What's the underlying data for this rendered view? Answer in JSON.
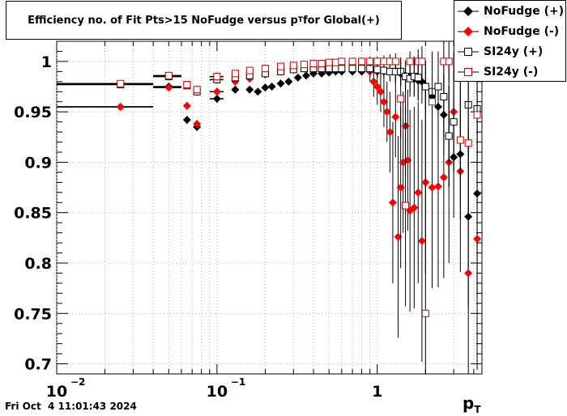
{
  "chart_data": {
    "type": "scatter",
    "title_main": "Efficiency no. of Fit Pts>15 NoFudge versus p",
    "title_sub": "T",
    "title_tail": " for Global(+)",
    "xlabel_main": "p",
    "xlabel_sub": "T",
    "ylabel": "",
    "x_scale": "log",
    "xlim": [
      0.01,
      4.5
    ],
    "ylim": [
      0.69,
      1.02
    ],
    "grid": true,
    "legend_position": "top-right",
    "y_ticks": [
      "0.7",
      "0.75",
      "0.8",
      "0.85",
      "0.9",
      "0.95",
      "1"
    ],
    "x_ticks": [
      {
        "base": "10",
        "exp": "−2",
        "value": 0.01
      },
      {
        "base": "10",
        "exp": "−1",
        "value": 0.1
      },
      {
        "base": "1",
        "exp": "",
        "value": 1
      }
    ],
    "series": [
      {
        "name": "NoFudge (+)",
        "marker": "diamond-filled",
        "color": "#000000",
        "points": [
          {
            "x": 0.025,
            "y": 0.955,
            "xerr": [
              0.01,
              0.04
            ],
            "yerr": 0.002
          },
          {
            "x": 0.05,
            "y": 0.975,
            "xerr": [
              0.04,
              0.06
            ],
            "yerr": 0.003
          },
          {
            "x": 0.065,
            "y": 0.942,
            "yerr": 0.004
          },
          {
            "x": 0.075,
            "y": 0.935,
            "yerr": 0.004
          },
          {
            "x": 0.1,
            "y": 0.963,
            "xerr": [
              0.09,
              0.11
            ],
            "yerr": 0.004
          },
          {
            "x": 0.13,
            "y": 0.972,
            "yerr": 0.003
          },
          {
            "x": 0.16,
            "y": 0.972,
            "yerr": 0.003
          },
          {
            "x": 0.18,
            "y": 0.97,
            "yerr": 0.003
          },
          {
            "x": 0.2,
            "y": 0.974,
            "yerr": 0.003
          },
          {
            "x": 0.22,
            "y": 0.975,
            "yerr": 0.003
          },
          {
            "x": 0.25,
            "y": 0.978,
            "yerr": 0.003
          },
          {
            "x": 0.28,
            "y": 0.98,
            "yerr": 0.003
          },
          {
            "x": 0.32,
            "y": 0.984,
            "yerr": 0.003
          },
          {
            "x": 0.36,
            "y": 0.986,
            "yerr": 0.003
          },
          {
            "x": 0.4,
            "y": 0.988,
            "yerr": 0.003
          },
          {
            "x": 0.45,
            "y": 0.988,
            "yerr": 0.003
          },
          {
            "x": 0.5,
            "y": 0.989,
            "yerr": 0.003
          },
          {
            "x": 0.55,
            "y": 0.99,
            "yerr": 0.003
          },
          {
            "x": 0.6,
            "y": 0.99,
            "yerr": 0.004
          },
          {
            "x": 0.7,
            "y": 0.99,
            "yerr": 0.004
          },
          {
            "x": 0.8,
            "y": 0.99,
            "yerr": 0.004
          },
          {
            "x": 0.9,
            "y": 0.99,
            "yerr": 0.005
          },
          {
            "x": 1.0,
            "y": 0.99,
            "yerr": 0.006
          },
          {
            "x": 1.1,
            "y": 0.99,
            "yerr": 0.007
          },
          {
            "x": 1.2,
            "y": 0.99,
            "yerr": 0.008
          },
          {
            "x": 1.3,
            "y": 0.99,
            "yerr": 0.01
          },
          {
            "x": 1.4,
            "y": 0.988,
            "yerr": 0.012
          },
          {
            "x": 1.5,
            "y": 0.986,
            "yerr": 0.014
          },
          {
            "x": 1.6,
            "y": 0.985,
            "yerr": 0.016
          },
          {
            "x": 1.7,
            "y": 0.983,
            "yerr": 0.018
          },
          {
            "x": 1.8,
            "y": 0.981,
            "yerr": 0.02
          },
          {
            "x": 1.9,
            "y": 0.98,
            "yerr": 0.022
          },
          {
            "x": 2.0,
            "y": 0.976,
            "yerr": 0.025
          },
          {
            "x": 2.2,
            "y": 0.965,
            "yerr": 0.03
          },
          {
            "x": 2.4,
            "y": 0.955,
            "yerr": 0.035
          },
          {
            "x": 2.6,
            "y": 0.947,
            "yerr": 0.04
          },
          {
            "x": 2.8,
            "y": 0.926,
            "yerr": 0.05
          },
          {
            "x": 3.0,
            "y": 0.905,
            "yerr": 0.06
          },
          {
            "x": 3.3,
            "y": 0.908,
            "yerr": 0.065
          },
          {
            "x": 3.7,
            "y": 0.846,
            "yerr": 0.09
          },
          {
            "x": 4.2,
            "y": 0.869,
            "yerr": 0.1
          }
        ]
      },
      {
        "name": "NoFudge (-)",
        "marker": "diamond-filled",
        "color": "#ff0000",
        "points": [
          {
            "x": 0.025,
            "y": 0.955,
            "xerr": [
              0.01,
              0.04
            ],
            "yerr": 0.002
          },
          {
            "x": 0.05,
            "y": 0.974,
            "xerr": [
              0.04,
              0.06
            ],
            "yerr": 0.003
          },
          {
            "x": 0.065,
            "y": 0.956,
            "yerr": 0.004
          },
          {
            "x": 0.075,
            "y": 0.938,
            "yerr": 0.004
          },
          {
            "x": 0.1,
            "y": 0.97,
            "xerr": [
              0.09,
              0.11
            ],
            "yerr": 0.004
          },
          {
            "x": 0.13,
            "y": 0.98,
            "yerr": 0.003
          },
          {
            "x": 0.16,
            "y": 0.983,
            "yerr": 0.003
          },
          {
            "x": 0.2,
            "y": 0.987,
            "yerr": 0.003
          },
          {
            "x": 0.25,
            "y": 0.99,
            "yerr": 0.003
          },
          {
            "x": 0.3,
            "y": 0.992,
            "yerr": 0.003
          },
          {
            "x": 0.35,
            "y": 0.993,
            "yerr": 0.003
          },
          {
            "x": 0.4,
            "y": 0.994,
            "yerr": 0.003
          },
          {
            "x": 0.45,
            "y": 0.995,
            "yerr": 0.004
          },
          {
            "x": 0.5,
            "y": 0.996,
            "yerr": 0.004
          },
          {
            "x": 0.55,
            "y": 0.996,
            "yerr": 0.005
          },
          {
            "x": 0.6,
            "y": 0.997,
            "yerr": 0.005
          },
          {
            "x": 0.7,
            "y": 0.996,
            "yerr": 0.006
          },
          {
            "x": 0.8,
            "y": 0.994,
            "yerr": 0.008
          },
          {
            "x": 0.9,
            "y": 0.99,
            "yerr": 0.01
          },
          {
            "x": 0.95,
            "y": 0.98,
            "yerr": 0.015
          },
          {
            "x": 1.0,
            "y": 0.975,
            "yerr": 0.018
          },
          {
            "x": 1.05,
            "y": 0.97,
            "yerr": 0.02
          },
          {
            "x": 1.1,
            "y": 0.96,
            "yerr": 0.025
          },
          {
            "x": 1.15,
            "y": 0.95,
            "yerr": 0.03
          },
          {
            "x": 1.2,
            "y": 0.93,
            "yerr": 0.04
          },
          {
            "x": 1.25,
            "y": 0.86,
            "yerr": 0.08
          },
          {
            "x": 1.3,
            "y": 0.945,
            "yerr": 0.04
          },
          {
            "x": 1.35,
            "y": 0.826,
            "yerr": 0.1
          },
          {
            "x": 1.4,
            "y": 0.875,
            "yerr": 0.08
          },
          {
            "x": 1.45,
            "y": 0.9,
            "yerr": 0.07
          },
          {
            "x": 1.5,
            "y": 0.936,
            "yerr": 0.05
          },
          {
            "x": 1.55,
            "y": 0.902,
            "yerr": 0.07
          },
          {
            "x": 1.6,
            "y": 0.852,
            "yerr": 0.1
          },
          {
            "x": 1.7,
            "y": 0.855,
            "yerr": 0.1
          },
          {
            "x": 1.8,
            "y": 0.87,
            "yerr": 0.09
          },
          {
            "x": 1.9,
            "y": 0.822,
            "yerr": 0.12
          },
          {
            "x": 2.0,
            "y": 0.88,
            "yerr": 0.09
          },
          {
            "x": 2.2,
            "y": 0.875,
            "yerr": 0.1
          },
          {
            "x": 2.4,
            "y": 0.876,
            "yerr": 0.1
          },
          {
            "x": 2.6,
            "y": 0.885,
            "yerr": 0.1
          },
          {
            "x": 2.8,
            "y": 0.9,
            "yerr": 0.1
          },
          {
            "x": 3.0,
            "y": 0.95,
            "yerr": 0.06
          },
          {
            "x": 3.3,
            "y": 0.891,
            "yerr": 0.1
          },
          {
            "x": 3.7,
            "y": 0.79,
            "yerr": 0.14
          },
          {
            "x": 4.2,
            "y": 0.824,
            "yerr": 0.13
          }
        ]
      },
      {
        "name": "SI24y (+)",
        "marker": "square-open",
        "color": "#000000",
        "points": [
          {
            "x": 0.025,
            "y": 0.977,
            "xerr": [
              0.01,
              0.04
            ],
            "yerr": 0.002
          },
          {
            "x": 0.05,
            "y": 0.985,
            "xerr": [
              0.04,
              0.06
            ],
            "yerr": 0.003
          },
          {
            "x": 0.065,
            "y": 0.976,
            "yerr": 0.003
          },
          {
            "x": 0.075,
            "y": 0.97,
            "yerr": 0.004
          },
          {
            "x": 0.1,
            "y": 0.982,
            "xerr": [
              0.09,
              0.11
            ],
            "yerr": 0.004
          },
          {
            "x": 0.13,
            "y": 0.984,
            "yerr": 0.003
          },
          {
            "x": 0.16,
            "y": 0.986,
            "yerr": 0.003
          },
          {
            "x": 0.2,
            "y": 0.988,
            "yerr": 0.003
          },
          {
            "x": 0.25,
            "y": 0.99,
            "yerr": 0.003
          },
          {
            "x": 0.3,
            "y": 0.992,
            "yerr": 0.003
          },
          {
            "x": 0.35,
            "y": 0.993,
            "yerr": 0.003
          },
          {
            "x": 0.4,
            "y": 0.993,
            "yerr": 0.003
          },
          {
            "x": 0.45,
            "y": 0.993,
            "yerr": 0.003
          },
          {
            "x": 0.5,
            "y": 0.993,
            "yerr": 0.003
          },
          {
            "x": 0.55,
            "y": 0.993,
            "yerr": 0.003
          },
          {
            "x": 0.6,
            "y": 0.993,
            "yerr": 0.004
          },
          {
            "x": 0.7,
            "y": 0.993,
            "yerr": 0.004
          },
          {
            "x": 0.8,
            "y": 0.993,
            "yerr": 0.005
          },
          {
            "x": 0.9,
            "y": 0.993,
            "yerr": 0.006
          },
          {
            "x": 1.0,
            "y": 0.992,
            "yerr": 0.007
          },
          {
            "x": 1.1,
            "y": 0.991,
            "yerr": 0.008
          },
          {
            "x": 1.2,
            "y": 0.99,
            "yerr": 0.01
          },
          {
            "x": 1.3,
            "y": 0.99,
            "yerr": 0.012
          },
          {
            "x": 1.4,
            "y": 0.99,
            "yerr": 0.014
          },
          {
            "x": 1.5,
            "y": 0.985,
            "yerr": 0.016
          },
          {
            "x": 1.6,
            "y": 0.983,
            "yerr": 0.018
          },
          {
            "x": 1.7,
            "y": 0.985,
            "yerr": 0.02
          },
          {
            "x": 1.8,
            "y": 0.984,
            "yerr": 0.022
          },
          {
            "x": 2.0,
            "y": 0.975,
            "yerr": 0.025
          },
          {
            "x": 2.2,
            "y": 0.97,
            "yerr": 0.03
          },
          {
            "x": 2.4,
            "y": 0.975,
            "yerr": 0.035
          },
          {
            "x": 2.6,
            "y": 0.965,
            "yerr": 0.04
          },
          {
            "x": 2.8,
            "y": 0.926,
            "yerr": 0.05
          },
          {
            "x": 3.0,
            "y": 0.94,
            "yerr": 0.05
          },
          {
            "x": 3.7,
            "y": 0.957,
            "yerr": 0.05
          },
          {
            "x": 4.2,
            "y": 0.953,
            "yerr": 0.05
          }
        ]
      },
      {
        "name": "SI24y (-)",
        "marker": "square-open",
        "color": "#cc0000",
        "points": [
          {
            "x": 0.025,
            "y": 0.978,
            "xerr": [
              0.01,
              0.04
            ],
            "yerr": 0.002
          },
          {
            "x": 0.05,
            "y": 0.986,
            "xerr": [
              0.04,
              0.06
            ],
            "yerr": 0.003
          },
          {
            "x": 0.065,
            "y": 0.977,
            "yerr": 0.003
          },
          {
            "x": 0.075,
            "y": 0.972,
            "yerr": 0.004
          },
          {
            "x": 0.1,
            "y": 0.985,
            "xerr": [
              0.09,
              0.11
            ],
            "yerr": 0.004
          },
          {
            "x": 0.13,
            "y": 0.988,
            "yerr": 0.003
          },
          {
            "x": 0.16,
            "y": 0.991,
            "yerr": 0.003
          },
          {
            "x": 0.2,
            "y": 0.993,
            "yerr": 0.003
          },
          {
            "x": 0.25,
            "y": 0.995,
            "yerr": 0.003
          },
          {
            "x": 0.3,
            "y": 0.996,
            "yerr": 0.003
          },
          {
            "x": 0.35,
            "y": 0.997,
            "yerr": 0.003
          },
          {
            "x": 0.4,
            "y": 0.998,
            "yerr": 0.003
          },
          {
            "x": 0.45,
            "y": 0.998,
            "yerr": 0.003
          },
          {
            "x": 0.5,
            "y": 0.999,
            "yerr": 0.003
          },
          {
            "x": 0.55,
            "y": 0.999,
            "yerr": 0.003
          },
          {
            "x": 0.6,
            "y": 1.0,
            "yerr": 0.003
          },
          {
            "x": 0.7,
            "y": 1.0,
            "yerr": 0.003
          },
          {
            "x": 0.8,
            "y": 1.0,
            "yerr": 0.004
          },
          {
            "x": 0.9,
            "y": 1.0,
            "yerr": 0.005
          },
          {
            "x": 1.0,
            "y": 1.0,
            "yerr": 0.005
          },
          {
            "x": 1.1,
            "y": 1.0,
            "yerr": 0.006
          },
          {
            "x": 1.2,
            "y": 1.0,
            "yerr": 0.007
          },
          {
            "x": 1.3,
            "y": 1.0,
            "yerr": 0.008
          },
          {
            "x": 1.4,
            "y": 0.963,
            "yerr": 0.04
          },
          {
            "x": 1.5,
            "y": 0.857,
            "yerr": 0.1
          },
          {
            "x": 1.6,
            "y": 1.0,
            "yerr": 0.01
          },
          {
            "x": 1.8,
            "y": 1.0,
            "yerr": 0.012
          },
          {
            "x": 1.9,
            "y": 1.0,
            "yerr": 0.015
          },
          {
            "x": 2.0,
            "y": 0.75,
            "yerr": 0.2
          },
          {
            "x": 2.2,
            "y": 0.96,
            "yerr": 0.05
          },
          {
            "x": 2.6,
            "y": 1.0,
            "yerr": 0.02
          },
          {
            "x": 2.8,
            "y": 1.0,
            "yerr": 0.02
          },
          {
            "x": 3.3,
            "y": 0.922,
            "yerr": 0.06
          },
          {
            "x": 3.7,
            "y": 0.919,
            "yerr": 0.07
          },
          {
            "x": 4.2,
            "y": 0.947,
            "yerr": 0.05
          }
        ]
      }
    ]
  },
  "footer": {
    "timestamp": "Fri Oct  4 11:01:43 2024"
  }
}
